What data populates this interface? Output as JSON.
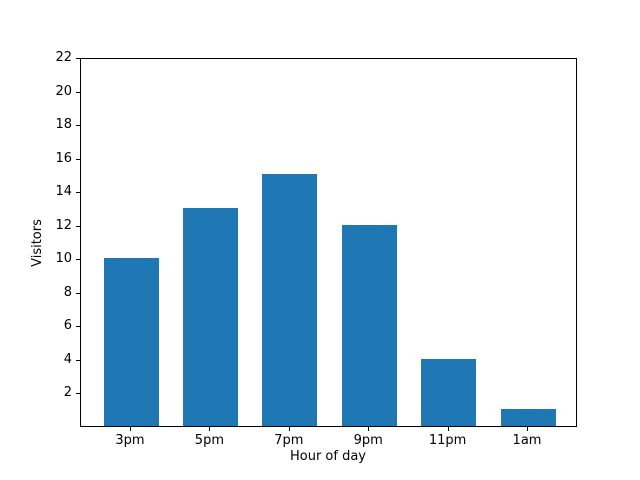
{
  "chart_data": {
    "type": "bar",
    "categories": [
      "3pm",
      "5pm",
      "7pm",
      "9pm",
      "11pm",
      "1am"
    ],
    "values": [
      10,
      13,
      15,
      12,
      4,
      1
    ],
    "title": "",
    "xlabel": "Hour of day",
    "ylabel": "Visitors",
    "ylim": [
      0,
      22
    ],
    "yticks": [
      2,
      4,
      6,
      8,
      10,
      12,
      14,
      16,
      18,
      20,
      22
    ],
    "bar_color": "#1f77b4",
    "background_color": "#ffffff",
    "spine_color": "#000000",
    "grid": false,
    "legend": null
  }
}
